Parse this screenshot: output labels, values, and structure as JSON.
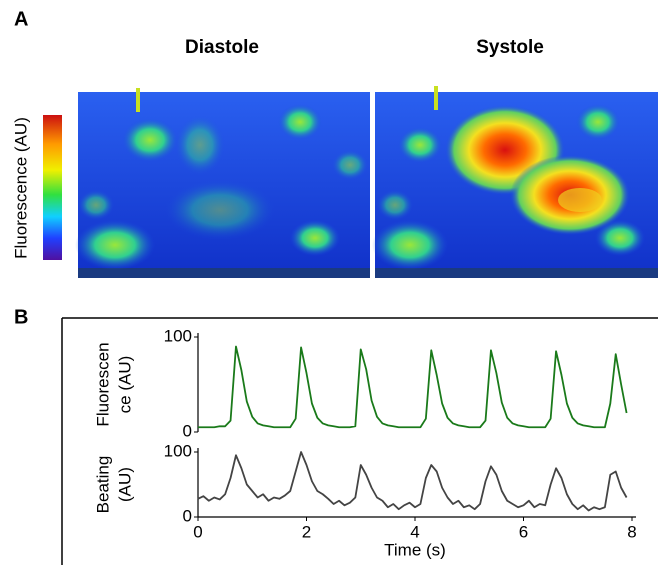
{
  "figure": {
    "panel_a": {
      "label": "A",
      "images": [
        "Diastole",
        "Systole"
      ],
      "colorbar_label": "Fluorescence (AU)"
    },
    "panel_b": {
      "label": "B"
    }
  },
  "chart_data": [
    {
      "type": "line",
      "ylabel": [
        "Fluorescen",
        "ce (AU)"
      ],
      "color": "#1a7a1a",
      "x": [
        0,
        0.1,
        0.2,
        0.3,
        0.4,
        0.5,
        0.6,
        0.7,
        0.8,
        0.9,
        1,
        1.1,
        1.2,
        1.3,
        1.4,
        1.5,
        1.6,
        1.7,
        1.8,
        1.9,
        2,
        2.1,
        2.2,
        2.3,
        2.4,
        2.5,
        2.6,
        2.7,
        2.8,
        2.9,
        3,
        3.1,
        3.2,
        3.3,
        3.4,
        3.5,
        3.6,
        3.7,
        3.8,
        3.9,
        4,
        4.1,
        4.2,
        4.3,
        4.4,
        4.5,
        4.6,
        4.7,
        4.8,
        4.9,
        5,
        5.1,
        5.2,
        5.3,
        5.4,
        5.5,
        5.6,
        5.7,
        5.8,
        5.9,
        6,
        6.1,
        6.2,
        6.3,
        6.4,
        6.5,
        6.6,
        6.7,
        6.8,
        6.9,
        7,
        7.1,
        7.2,
        7.3,
        7.4,
        7.5,
        7.6,
        7.7,
        7.8,
        7.9
      ],
      "values": [
        5,
        5,
        5,
        5,
        6,
        6,
        12,
        90,
        65,
        32,
        16,
        9,
        7,
        6,
        5,
        5,
        5,
        5,
        14,
        89,
        62,
        30,
        15,
        9,
        7,
        6,
        5,
        5,
        5,
        6,
        87,
        66,
        33,
        16,
        9,
        7,
        6,
        5,
        5,
        5,
        5,
        5,
        14,
        86,
        60,
        30,
        15,
        9,
        7,
        6,
        5,
        5,
        5,
        12,
        86,
        62,
        31,
        15,
        9,
        7,
        6,
        5,
        5,
        5,
        5,
        14,
        85,
        60,
        30,
        15,
        9,
        7,
        6,
        5,
        5,
        5,
        30,
        82,
        50,
        20
      ],
      "xlim": [
        0,
        8
      ],
      "ylim": [
        0,
        100
      ],
      "yticks": [
        0,
        100
      ]
    },
    {
      "type": "line",
      "ylabel": [
        "Beating",
        "(AU)"
      ],
      "xlabel": "Time (s)",
      "color": "#444444",
      "x": [
        0,
        0.1,
        0.2,
        0.3,
        0.4,
        0.5,
        0.6,
        0.7,
        0.8,
        0.9,
        1,
        1.1,
        1.2,
        1.3,
        1.4,
        1.5,
        1.6,
        1.7,
        1.8,
        1.9,
        2,
        2.1,
        2.2,
        2.3,
        2.4,
        2.5,
        2.6,
        2.7,
        2.8,
        2.9,
        3,
        3.1,
        3.2,
        3.3,
        3.4,
        3.5,
        3.6,
        3.7,
        3.8,
        3.9,
        4,
        4.1,
        4.2,
        4.3,
        4.4,
        4.5,
        4.6,
        4.7,
        4.8,
        4.9,
        5,
        5.1,
        5.2,
        5.3,
        5.4,
        5.5,
        5.6,
        5.7,
        5.8,
        5.9,
        6,
        6.1,
        6.2,
        6.3,
        6.4,
        6.5,
        6.6,
        6.7,
        6.8,
        6.9,
        7,
        7.1,
        7.2,
        7.3,
        7.4,
        7.5,
        7.6,
        7.7,
        7.8,
        7.9
      ],
      "values": [
        28,
        32,
        25,
        30,
        27,
        35,
        60,
        95,
        75,
        50,
        40,
        30,
        35,
        25,
        30,
        28,
        33,
        40,
        70,
        100,
        80,
        55,
        40,
        35,
        28,
        20,
        25,
        18,
        22,
        30,
        80,
        65,
        45,
        30,
        25,
        15,
        20,
        12,
        18,
        22,
        15,
        20,
        60,
        80,
        70,
        45,
        30,
        20,
        25,
        15,
        18,
        12,
        20,
        55,
        78,
        65,
        40,
        25,
        20,
        15,
        18,
        25,
        15,
        20,
        18,
        50,
        75,
        60,
        35,
        20,
        12,
        18,
        10,
        15,
        12,
        15,
        65,
        70,
        45,
        30
      ],
      "xlim": [
        0,
        8
      ],
      "xticks": [
        0,
        2,
        4,
        6,
        8
      ],
      "ylim": [
        0,
        100
      ],
      "yticks": [
        0,
        100
      ]
    }
  ]
}
